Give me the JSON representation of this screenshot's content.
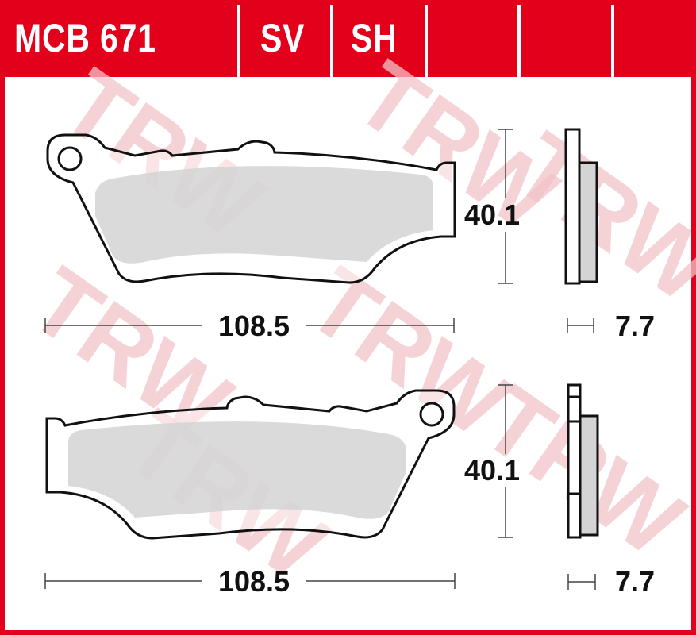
{
  "header": {
    "part_number": "MCB 671",
    "columns": [
      "SV",
      "SH",
      "",
      "",
      ""
    ]
  },
  "watermark": "TRW",
  "colors": {
    "brand_red": "#e2001a",
    "friction_material": "#d4d4d4",
    "watermark": "#f2c3c8"
  },
  "pads": [
    {
      "width_label": "108.5",
      "height_label": "40.1",
      "thickness_label": "7.7"
    },
    {
      "width_label": "108.5",
      "height_label": "40.1",
      "thickness_label": "7.7"
    }
  ]
}
